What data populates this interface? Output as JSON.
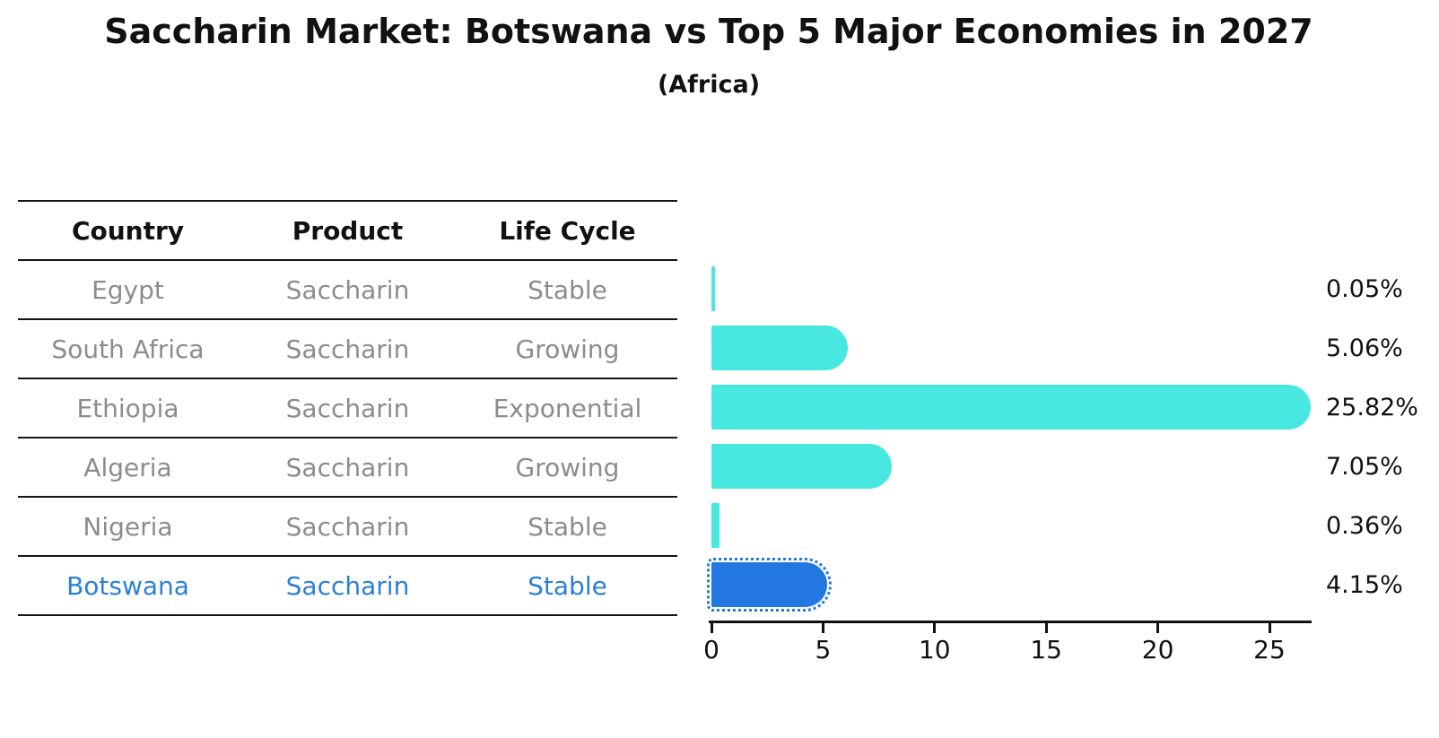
{
  "title": "Saccharin Market: Botswana vs Top 5 Major Economies in 2027",
  "subtitle": "(Africa)",
  "table": {
    "headers": [
      "Country",
      "Product",
      "Life Cycle"
    ],
    "rows": [
      {
        "country": "Egypt",
        "product": "Saccharin",
        "life_cycle": "Stable",
        "highlight": false
      },
      {
        "country": "South Africa",
        "product": "Saccharin",
        "life_cycle": "Growing",
        "highlight": false
      },
      {
        "country": "Ethiopia",
        "product": "Saccharin",
        "life_cycle": "Exponential",
        "highlight": false
      },
      {
        "country": "Algeria",
        "product": "Saccharin",
        "life_cycle": "Growing",
        "highlight": false
      },
      {
        "country": "Nigeria",
        "product": "Saccharin",
        "life_cycle": "Stable",
        "highlight": false
      },
      {
        "country": "Botswana",
        "product": "Saccharin",
        "life_cycle": "Stable",
        "highlight": true
      }
    ]
  },
  "chart_data": {
    "type": "bar",
    "orientation": "horizontal",
    "title": "Saccharin Market: Botswana vs Top 5 Major Economies in 2027",
    "subtitle": "(Africa)",
    "categories": [
      "Egypt",
      "South Africa",
      "Ethiopia",
      "Algeria",
      "Nigeria",
      "Botswana"
    ],
    "values": [
      0.05,
      5.06,
      25.82,
      7.05,
      0.36,
      4.15
    ],
    "value_labels": [
      "0.05%",
      "5.06%",
      "25.82%",
      "7.05%",
      "0.36%",
      "4.15%"
    ],
    "x_ticks": [
      0,
      5,
      10,
      15,
      20,
      25
    ],
    "xlim": [
      0,
      26.9
    ],
    "grid": false,
    "legend": false,
    "highlight_index": 5,
    "bar_color": "#48e8e1",
    "highlight_color": "#2377e0"
  },
  "colors": {
    "bar": "#48e8e1",
    "highlight_bar": "#2377e0",
    "table_text": "#8c8c8c",
    "highlight_text": "#2b7fd9",
    "heading_text": "#111111",
    "axis": "#111111"
  }
}
